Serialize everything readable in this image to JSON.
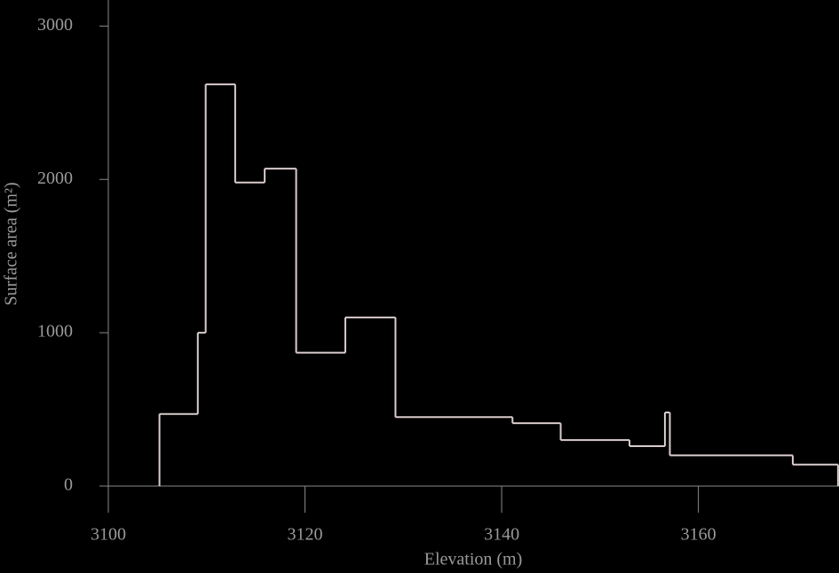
{
  "chart_data": {
    "type": "histogram",
    "xlabel": "Elevation (m)",
    "ylabel": "Surface area (m²)",
    "bins": [
      3105.2,
      3109.1,
      3109.9,
      3112.9,
      3115.9,
      3119.1,
      3124.1,
      3129.2,
      3141.1,
      3146.0,
      3153.0,
      3156.6,
      3157.1,
      3169.6,
      3174.2
    ],
    "counts": [
      470,
      1000,
      2620,
      1980,
      2070,
      870,
      1100,
      450,
      410,
      300,
      260,
      480,
      200,
      140
    ],
    "color": "#d9cccc",
    "xlim": [
      3100,
      3174.3
    ],
    "xticks": [
      3100,
      3120,
      3140,
      3160
    ],
    "ylim": [
      0,
      3170
    ],
    "yticks": [
      0,
      1000,
      2000,
      3000
    ]
  }
}
